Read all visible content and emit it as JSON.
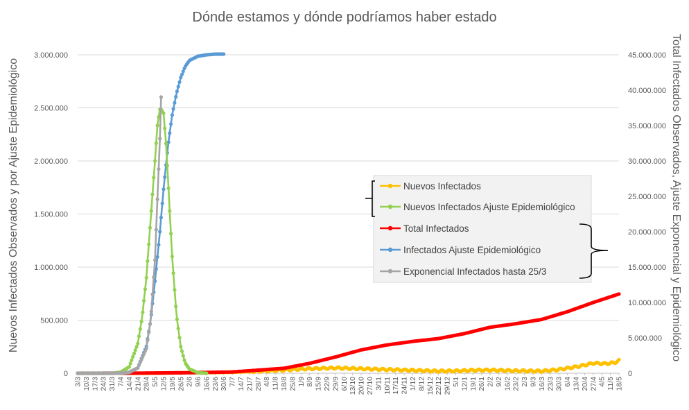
{
  "chart_data": {
    "type": "line",
    "title": "Dónde estamos y dónde podríamos haber estado",
    "ylabel_left": "Nuevos Infectados Observados y por Ajuste Epidemiológico",
    "ylabel_right": "Total Infectados Observados, Ajuste Exponencial y Epidemiológico",
    "ylim_left": [
      0,
      3000000
    ],
    "ylim_right": [
      0,
      45000000
    ],
    "yticks_left": [
      "0",
      "500.000",
      "1.000.000",
      "1.500.000",
      "2.000.000",
      "2.500.000",
      "3.000.000"
    ],
    "yticks_right": [
      "0",
      "5.000.000",
      "10.000.000",
      "15.000.000",
      "20.000.000",
      "25.000.000",
      "30.000.000",
      "35.000.000",
      "40.000.000",
      "45.000.000"
    ],
    "x_ticks": [
      "3/3",
      "10/3",
      "17/3",
      "24/3",
      "31/3",
      "7/4",
      "14/4",
      "21/4",
      "28/4",
      "5/5",
      "12/5",
      "19/5",
      "26/5",
      "2/6",
      "9/6",
      "16/6",
      "23/6",
      "30/6",
      "7/7",
      "14/7",
      "21/7",
      "28/7",
      "4/8",
      "11/8",
      "18/8",
      "25/8",
      "1/9",
      "8/9",
      "15/9",
      "22/9",
      "29/9",
      "6/10",
      "13/10",
      "20/10",
      "27/10",
      "3/11",
      "10/11",
      "17/11",
      "24/11",
      "1/12",
      "8/12",
      "15/12",
      "22/12",
      "29/12",
      "5/1",
      "12/1",
      "19/1",
      "26/1",
      "2/2",
      "9/2",
      "16/2",
      "23/2",
      "2/3",
      "9/3",
      "16/3",
      "23/3",
      "30/3",
      "6/4",
      "13/4",
      "20/4",
      "27/4",
      "4/5",
      "11/5",
      "18/5"
    ],
    "x_unit": "weeks starting 3/3",
    "grid": "horizontal",
    "legend_placement": "right",
    "legend_groups": [
      {
        "axis": "left",
        "series": [
          "Nuevos Infectados",
          "Nuevos Infectados Ajuste Epidemiológico"
        ]
      },
      {
        "axis": "right",
        "series": [
          "Total Infectados",
          "Infectados Ajuste Epidemiológico",
          "Exponencial Infectados hasta 25/3"
        ]
      }
    ],
    "series": [
      {
        "name": "Nuevos Infectados",
        "axis": "left",
        "color": "#FFC000",
        "x": [
          0,
          4,
          6,
          8,
          10,
          12,
          14,
          16,
          18,
          20,
          22,
          24,
          26,
          28,
          30,
          32,
          34,
          36,
          38,
          40,
          42,
          44,
          46,
          48,
          50,
          52,
          54,
          56,
          58,
          60,
          61.5,
          62.5,
          63
        ],
        "values": [
          0,
          0,
          0,
          0,
          2000,
          5000,
          6000,
          7000,
          9000,
          15000,
          22000,
          30000,
          40000,
          45000,
          50000,
          45000,
          40000,
          35000,
          30000,
          25000,
          20000,
          22000,
          28000,
          30000,
          25000,
          22000,
          20000,
          35000,
          60000,
          95000,
          90000,
          100000,
          120000
        ]
      },
      {
        "name": "Nuevos Infectados Ajuste Epidemiológico",
        "axis": "left",
        "color": "#92D050",
        "x": [
          0,
          4,
          5,
          6,
          7,
          7.5,
          8,
          8.5,
          9,
          9.3,
          9.6,
          10,
          10.3,
          10.6,
          11,
          11.5,
          12,
          12.5,
          13,
          14,
          15
        ],
        "values": [
          0,
          0,
          10000,
          60000,
          280000,
          520000,
          900000,
          1450000,
          2000000,
          2350000,
          2500000,
          2450000,
          2150000,
          1700000,
          1100000,
          550000,
          250000,
          100000,
          40000,
          5000,
          0
        ]
      },
      {
        "name": "Total Infectados",
        "axis": "right",
        "color": "#FF0000",
        "x": [
          0,
          6,
          12,
          18,
          24,
          27,
          30,
          33,
          36,
          39,
          42,
          45,
          48,
          51,
          54,
          57,
          60,
          63
        ],
        "values": [
          0,
          10000,
          60000,
          180000,
          700000,
          1400000,
          2300000,
          3300000,
          4000000,
          4500000,
          4900000,
          5600000,
          6500000,
          7000000,
          7600000,
          8700000,
          10000000,
          11200000
        ]
      },
      {
        "name": "Infectados Ajuste Epidemiológico",
        "axis": "right",
        "color": "#5B9BD5",
        "x": [
          0,
          4,
          5,
          6,
          7,
          8,
          8.5,
          9,
          9.5,
          10,
          10.5,
          11,
          11.5,
          12,
          12.5,
          13,
          14,
          15,
          16,
          17
        ],
        "values": [
          0,
          0,
          20000,
          120000,
          750000,
          3800000,
          7500000,
          13000000,
          19000000,
          26000000,
          32000000,
          36500000,
          39500000,
          41800000,
          43300000,
          44200000,
          44800000,
          45000000,
          45100000,
          45100000
        ]
      },
      {
        "name": "Exponencial Infectados hasta 25/3",
        "axis": "right",
        "color": "#A5A5A5",
        "x": [
          0,
          4,
          5,
          6,
          7,
          8,
          8.5,
          9,
          9.3,
          9.6,
          9.85
        ],
        "values": [
          0,
          0,
          25000,
          150000,
          750000,
          3500000,
          7500000,
          16000000,
          25000000,
          34000000,
          45000000
        ]
      }
    ]
  }
}
